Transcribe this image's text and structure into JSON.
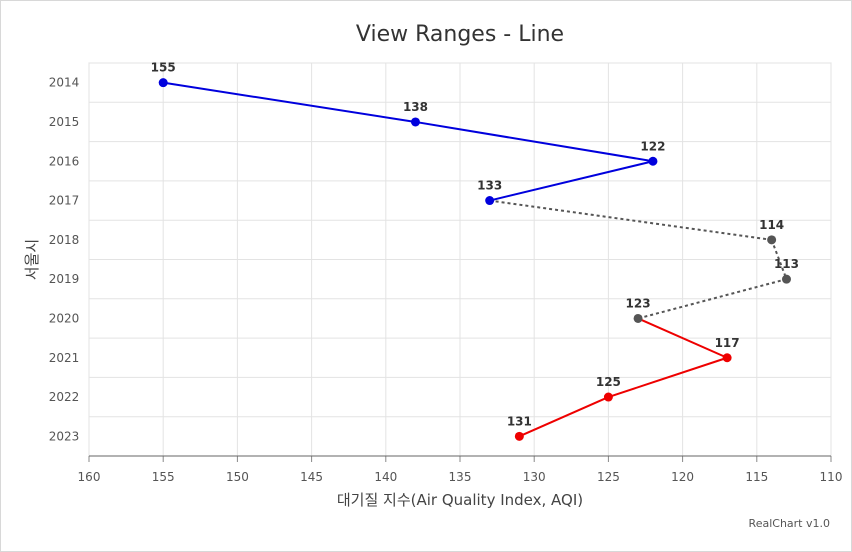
{
  "chart_data": {
    "type": "line",
    "title": "View Ranges - Line",
    "xlabel": "대기질 지수(Air Quality Index, AQI)",
    "ylabel": "서울시",
    "categories": [
      "2014",
      "2015",
      "2016",
      "2017",
      "2018",
      "2019",
      "2020",
      "2021",
      "2022",
      "2023"
    ],
    "values": [
      155,
      138,
      122,
      133,
      114,
      113,
      123,
      117,
      125,
      131
    ],
    "xlim": [
      160,
      110
    ],
    "xticks": [
      160,
      155,
      150,
      145,
      140,
      135,
      130,
      125,
      120,
      115,
      110
    ],
    "grid": true,
    "ranges": [
      {
        "from": 0,
        "to": 3,
        "color": "#0000dd",
        "dash": false
      },
      {
        "from": 3,
        "to": 6,
        "color": "#555555",
        "dash": true
      },
      {
        "from": 6,
        "to": 9,
        "color": "#ee0000",
        "dash": false
      }
    ]
  },
  "credit": "RealChart v1.0"
}
